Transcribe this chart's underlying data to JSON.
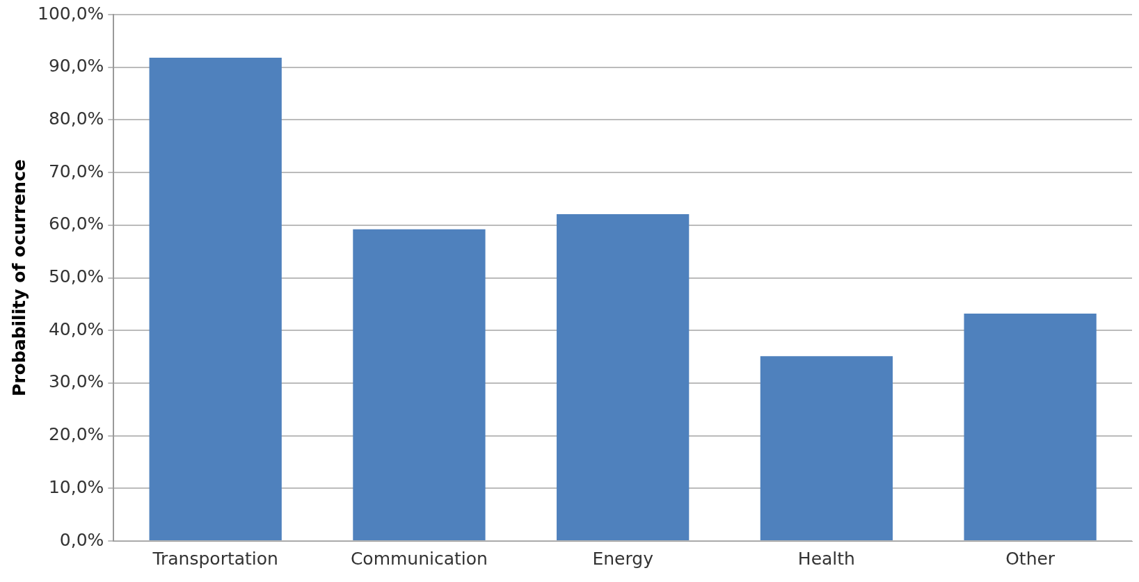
{
  "chart_data": {
    "type": "bar",
    "ylabel": "Probability of ocurrence",
    "categories": [
      "Transportation",
      "Communication",
      "Energy",
      "Health",
      "Other"
    ],
    "values": [
      91.8,
      59.2,
      62.1,
      35.1,
      43.2
    ],
    "color": "#4f81bd",
    "ylim": [
      0,
      100
    ],
    "yticks": [
      {
        "value": 0,
        "label": "0,0%"
      },
      {
        "value": 10,
        "label": "10,0%"
      },
      {
        "value": 20,
        "label": "20,0%"
      },
      {
        "value": 30,
        "label": "30,0%"
      },
      {
        "value": 40,
        "label": "40,0%"
      },
      {
        "value": 50,
        "label": "50,0%"
      },
      {
        "value": 60,
        "label": "60,0%"
      },
      {
        "value": 70,
        "label": "70,0%"
      },
      {
        "value": 80,
        "label": "80,0%"
      },
      {
        "value": 90,
        "label": "90,0%"
      },
      {
        "value": 100,
        "label": "100,0%"
      }
    ],
    "grid": "y",
    "legend": false
  }
}
